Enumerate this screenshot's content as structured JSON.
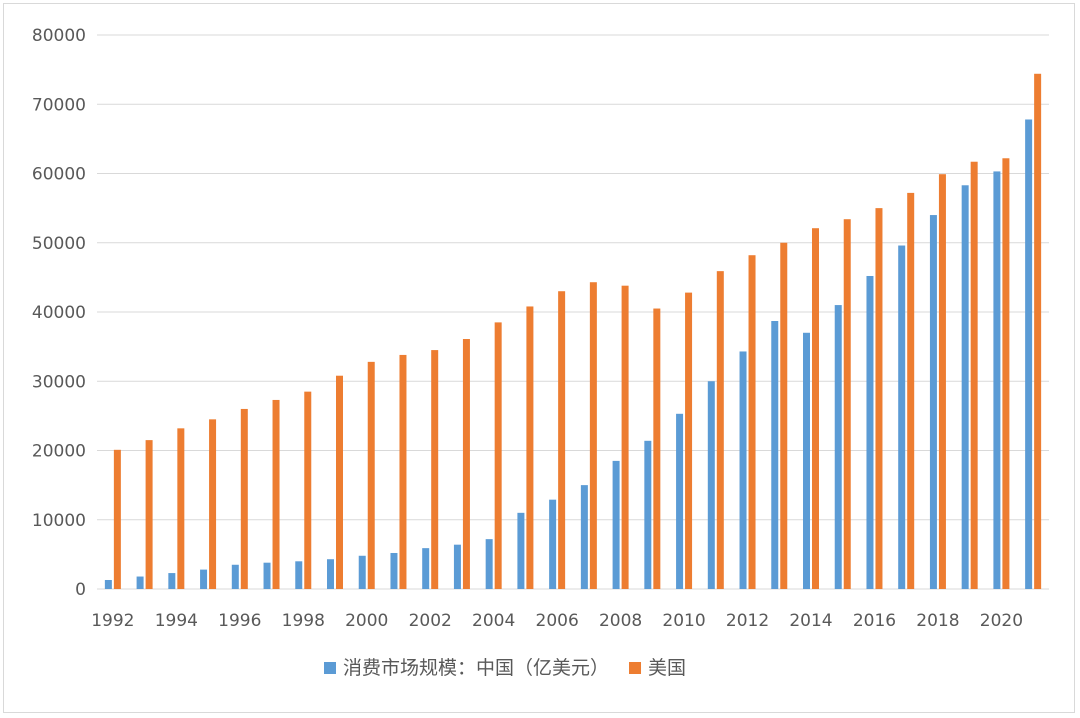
{
  "chart_data": {
    "type": "bar",
    "title": "",
    "xlabel": "",
    "ylabel": "",
    "ylim": [
      0,
      80000
    ],
    "yticks": [
      "0",
      "10000",
      "20000",
      "30000",
      "40000",
      "50000",
      "60000",
      "70000",
      "80000"
    ],
    "grid": true,
    "legend_position": "bottom",
    "categories": [
      "1992",
      "1993",
      "1994",
      "1995",
      "1996",
      "1997",
      "1998",
      "1999",
      "2000",
      "2001",
      "2002",
      "2003",
      "2004",
      "2005",
      "2006",
      "2007",
      "2008",
      "2009",
      "2010",
      "2011",
      "2012",
      "2013",
      "2014",
      "2015",
      "2016",
      "2017",
      "2018",
      "2019",
      "2020",
      "2021"
    ],
    "xtick_labels": [
      "1992",
      "1994",
      "1996",
      "1998",
      "2000",
      "2002",
      "2004",
      "2006",
      "2008",
      "2010",
      "2012",
      "2014",
      "2016",
      "2018",
      "2020"
    ],
    "series": [
      {
        "name": "消费市场规模：中国（亿美元）",
        "color": "#5b9bd5",
        "values": [
          1300,
          1800,
          2300,
          2800,
          3500,
          3800,
          4000,
          4300,
          4800,
          5200,
          5900,
          6400,
          7200,
          11000,
          12900,
          15000,
          18500,
          21400,
          25300,
          30000,
          34300,
          38700,
          37000,
          41000,
          45200,
          49600,
          54000,
          58300,
          60300,
          67800
        ]
      },
      {
        "name": "美国",
        "color": "#ed7d31",
        "values": [
          20100,
          21500,
          23200,
          24500,
          26000,
          27300,
          28500,
          30800,
          32800,
          33800,
          34500,
          36100,
          38500,
          40800,
          43000,
          44300,
          43800,
          40500,
          42800,
          45900,
          48200,
          50000,
          52100,
          53400,
          55000,
          57200,
          59900,
          61700,
          62200,
          74400
        ]
      }
    ]
  }
}
